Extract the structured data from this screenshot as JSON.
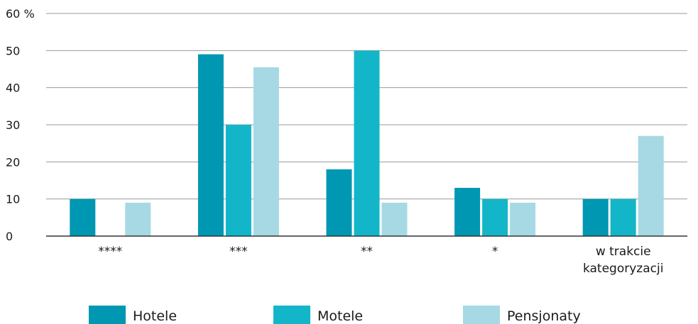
{
  "chart_data": {
    "type": "bar",
    "title": "",
    "xlabel": "",
    "ylabel": "",
    "unit_label": "%",
    "ylim": [
      0,
      60
    ],
    "yticks": [
      0,
      10,
      20,
      30,
      40,
      50,
      60
    ],
    "grid": true,
    "legend_position": "bottom",
    "categories": [
      "****",
      "***",
      "**",
      "*",
      "w trakcie kategoryzacji"
    ],
    "category_lines": [
      [
        "****"
      ],
      [
        "***"
      ],
      [
        "**"
      ],
      [
        "*"
      ],
      [
        "w trakcie",
        "kategoryzacji"
      ]
    ],
    "series": [
      {
        "name": "Hotele",
        "color": "#0097b2",
        "values": [
          10,
          49,
          18,
          13,
          10
        ]
      },
      {
        "name": "Motele",
        "color": "#13b6c9",
        "values": [
          0,
          30,
          50,
          10,
          10
        ]
      },
      {
        "name": "Pensjonaty",
        "color": "#a6d9e4",
        "values": [
          9,
          45.5,
          9,
          9,
          27
        ]
      }
    ]
  }
}
